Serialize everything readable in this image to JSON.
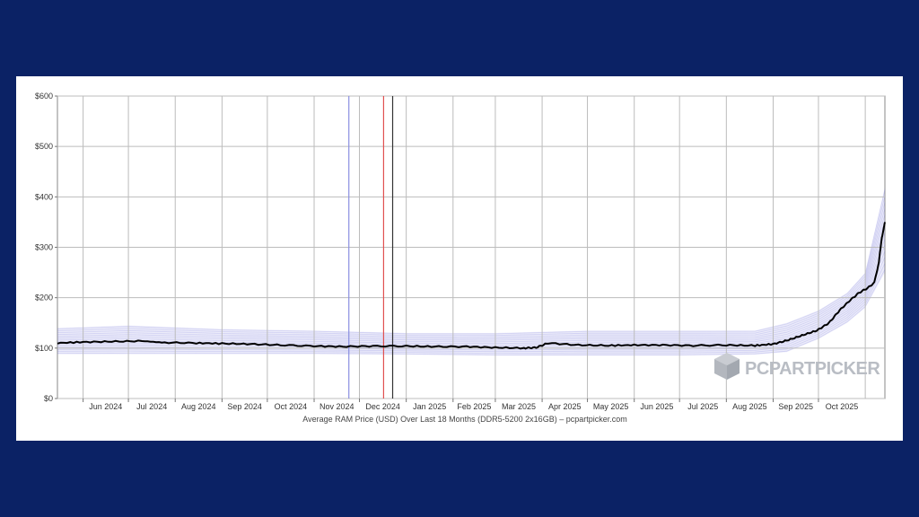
{
  "chart_data": {
    "type": "line",
    "title": "",
    "xlabel": "Average RAM Price (USD) Over Last 18 Months (DDR5-5200 2x16GB) – pcpartpicker.com",
    "ylabel": "",
    "ylim": [
      0,
      600
    ],
    "y_ticks": [
      "$0",
      "$100",
      "$200",
      "$300",
      "$400",
      "$500",
      "$600"
    ],
    "x_ticks": [
      "Jun 2024",
      "Jul 2024",
      "Aug 2024",
      "Sep 2024",
      "Oct 2024",
      "Nov 2024",
      "Dec 2024",
      "Jan 2025",
      "Feb 2025",
      "Mar 2025",
      "Apr 2025",
      "May 2025",
      "Jun 2025",
      "Jul 2025",
      "Aug 2025",
      "Sep 2025",
      "Oct 2025"
    ],
    "xlim": [
      "2024-05-15",
      "2025-11-14"
    ],
    "grid": true,
    "vertical_markers": [
      {
        "x": "2024-11-24",
        "color": "#8a8fe0"
      },
      {
        "x": "2024-12-17",
        "color": "#e05050"
      },
      {
        "x": "2024-12-23",
        "color": "#333333"
      }
    ],
    "series": [
      {
        "color": "#000000",
        "x": [
          "2024-05-15",
          "2024-06-01",
          "2024-06-20",
          "2024-07-10",
          "2024-07-25",
          "2024-08-15",
          "2024-09-01",
          "2024-09-20",
          "2024-10-10",
          "2024-11-01",
          "2024-11-20",
          "2024-12-10",
          "2025-01-01",
          "2025-01-20",
          "2025-02-10",
          "2025-03-01",
          "2025-03-20",
          "2025-03-28",
          "2025-04-05",
          "2025-04-25",
          "2025-05-15",
          "2025-06-01",
          "2025-06-20",
          "2025-07-10",
          "2025-08-01",
          "2025-08-20",
          "2025-09-01",
          "2025-09-10",
          "2025-09-20",
          "2025-09-30",
          "2025-10-08",
          "2025-10-15",
          "2025-10-22",
          "2025-10-28",
          "2025-11-03",
          "2025-11-07",
          "2025-11-10",
          "2025-11-12",
          "2025-11-14"
        ],
        "values": [
          110,
          112,
          113,
          114,
          111,
          110,
          109,
          108,
          106,
          104,
          103,
          104,
          104,
          103,
          103,
          101,
          100,
          101,
          110,
          106,
          105,
          106,
          106,
          105,
          106,
          105,
          108,
          115,
          125,
          135,
          150,
          175,
          195,
          210,
          220,
          230,
          270,
          320,
          350
        ]
      }
    ],
    "band": {
      "color": "#6a6ad8",
      "x": [
        "2024-05-15",
        "2024-07-01",
        "2024-09-01",
        "2024-11-01",
        "2025-01-01",
        "2025-03-01",
        "2025-05-01",
        "2025-07-01",
        "2025-08-20",
        "2025-09-10",
        "2025-10-01",
        "2025-10-20",
        "2025-11-01",
        "2025-11-14"
      ],
      "low": [
        88,
        88,
        88,
        88,
        87,
        85,
        85,
        85,
        87,
        92,
        118,
        150,
        180,
        250
      ],
      "high": [
        140,
        145,
        138,
        135,
        130,
        130,
        135,
        135,
        135,
        150,
        175,
        210,
        250,
        420
      ]
    }
  },
  "watermark": {
    "text": "PCPARTPICKER",
    "icon": "cube-logo-icon"
  }
}
